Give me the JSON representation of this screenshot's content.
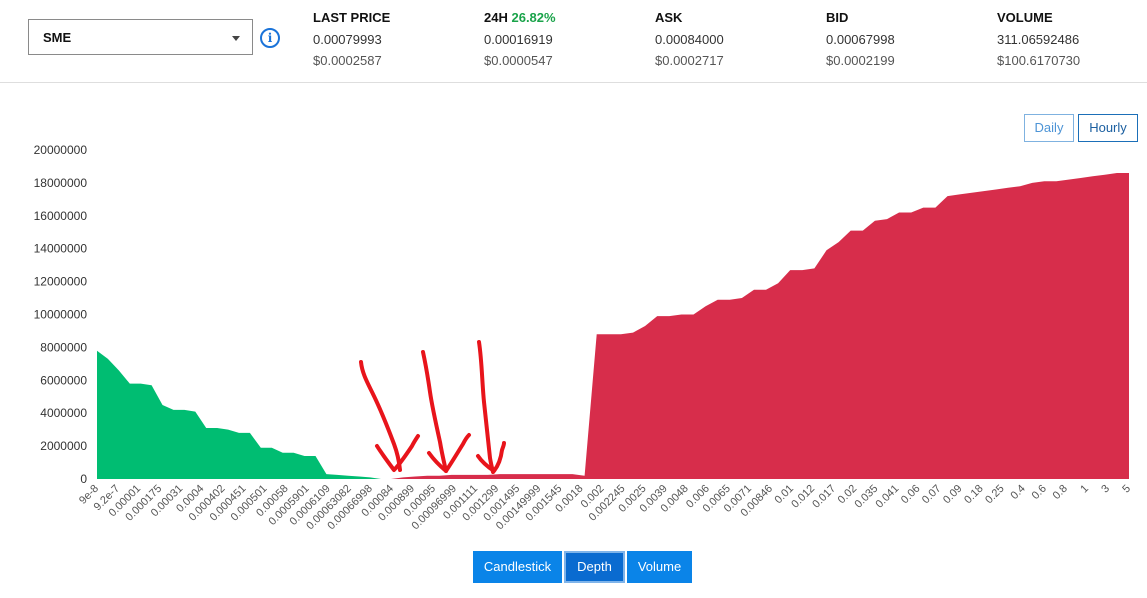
{
  "market_select": {
    "value": "SME"
  },
  "info_icon": "info-icon",
  "stats": {
    "last_price": {
      "label": "LAST PRICE",
      "value": "0.00079993",
      "usd": "$0.0002587"
    },
    "change_24h": {
      "label": "24H",
      "percent": "26.82%",
      "value": "0.00016919",
      "usd": "$0.0000547"
    },
    "ask": {
      "label": "ASK",
      "value": "0.00084000",
      "usd": "$0.0002717"
    },
    "bid": {
      "label": "BID",
      "value": "0.00067998",
      "usd": "$0.0002199"
    },
    "volume": {
      "label": "VOLUME",
      "value": "311.06592486",
      "usd": "$100.6170730"
    }
  },
  "range_buttons": {
    "daily": "Daily",
    "hourly": "Hourly"
  },
  "view_tabs": {
    "candlestick": "Candlestick",
    "depth": "Depth",
    "volume": "Volume",
    "active": "Depth"
  },
  "colors": {
    "bids": "#00bd72",
    "asks": "#d72d4b",
    "annotation": "#e8141b",
    "accent": "#0a84e8",
    "positive": "#1aa34a"
  },
  "chart_data": {
    "type": "area",
    "ylim": [
      0,
      20000000
    ],
    "y_ticks": [
      "20000000",
      "18000000",
      "16000000",
      "14000000",
      "12000000",
      "10000000",
      "8000000",
      "6000000",
      "4000000",
      "2000000",
      "0"
    ],
    "x_ticks": [
      "9e-8",
      "9.2e-7",
      "0.00001",
      "0.000175",
      "0.00031",
      "0.0004",
      "0.000402",
      "0.000451",
      "0.000501",
      "0.00058",
      "0.0005901",
      "0.0006109",
      "0.00063082",
      "0.00066998",
      "0.00084",
      "0.000899",
      "0.00095",
      "0.00096999",
      "0.001111",
      "0.001299",
      "0.001495",
      "0.00149999",
      "0.001545",
      "0.0018",
      "0.002",
      "0.002245",
      "0.0025",
      "0.0039",
      "0.0048",
      "0.006",
      "0.0065",
      "0.0071",
      "0.00846",
      "0.01",
      "0.012",
      "0.017",
      "0.02",
      "0.035",
      "0.041",
      "0.06",
      "0.07",
      "0.09",
      "0.18",
      "0.25",
      "0.4",
      "0.6",
      "0.8",
      "1",
      "3",
      "5"
    ],
    "series": [
      {
        "side": "bids",
        "values": [
          7800000,
          7300000,
          6600000,
          5800000,
          5800000,
          5700000,
          4500000,
          4200000,
          4200000,
          4100000,
          3100000,
          3100000,
          3000000,
          2800000,
          2800000,
          1900000,
          1900000,
          1600000,
          1600000,
          1400000,
          1400000,
          300000,
          250000,
          200000,
          150000,
          100000,
          0
        ]
      },
      {
        "side": "asks",
        "values": [
          0,
          100000,
          150000,
          200000,
          200000,
          250000,
          250000,
          250000,
          250000,
          300000,
          300000,
          300000,
          300000,
          300000,
          300000,
          300000,
          200000,
          8800000,
          8800000,
          8800000,
          8900000,
          9300000,
          9900000,
          9900000,
          10000000,
          10000000,
          10500000,
          10900000,
          10900000,
          11000000,
          11500000,
          11500000,
          11900000,
          12700000,
          12700000,
          12800000,
          13900000,
          14400000,
          15100000,
          15100000,
          15700000,
          15800000,
          16200000,
          16200000,
          16500000,
          16500000,
          17200000,
          17300000,
          17400000,
          17500000,
          17600000,
          17700000,
          17800000,
          18000000,
          18100000,
          18100000,
          18200000,
          18300000,
          18400000,
          18500000,
          18600000,
          18600000
        ]
      }
    ]
  }
}
